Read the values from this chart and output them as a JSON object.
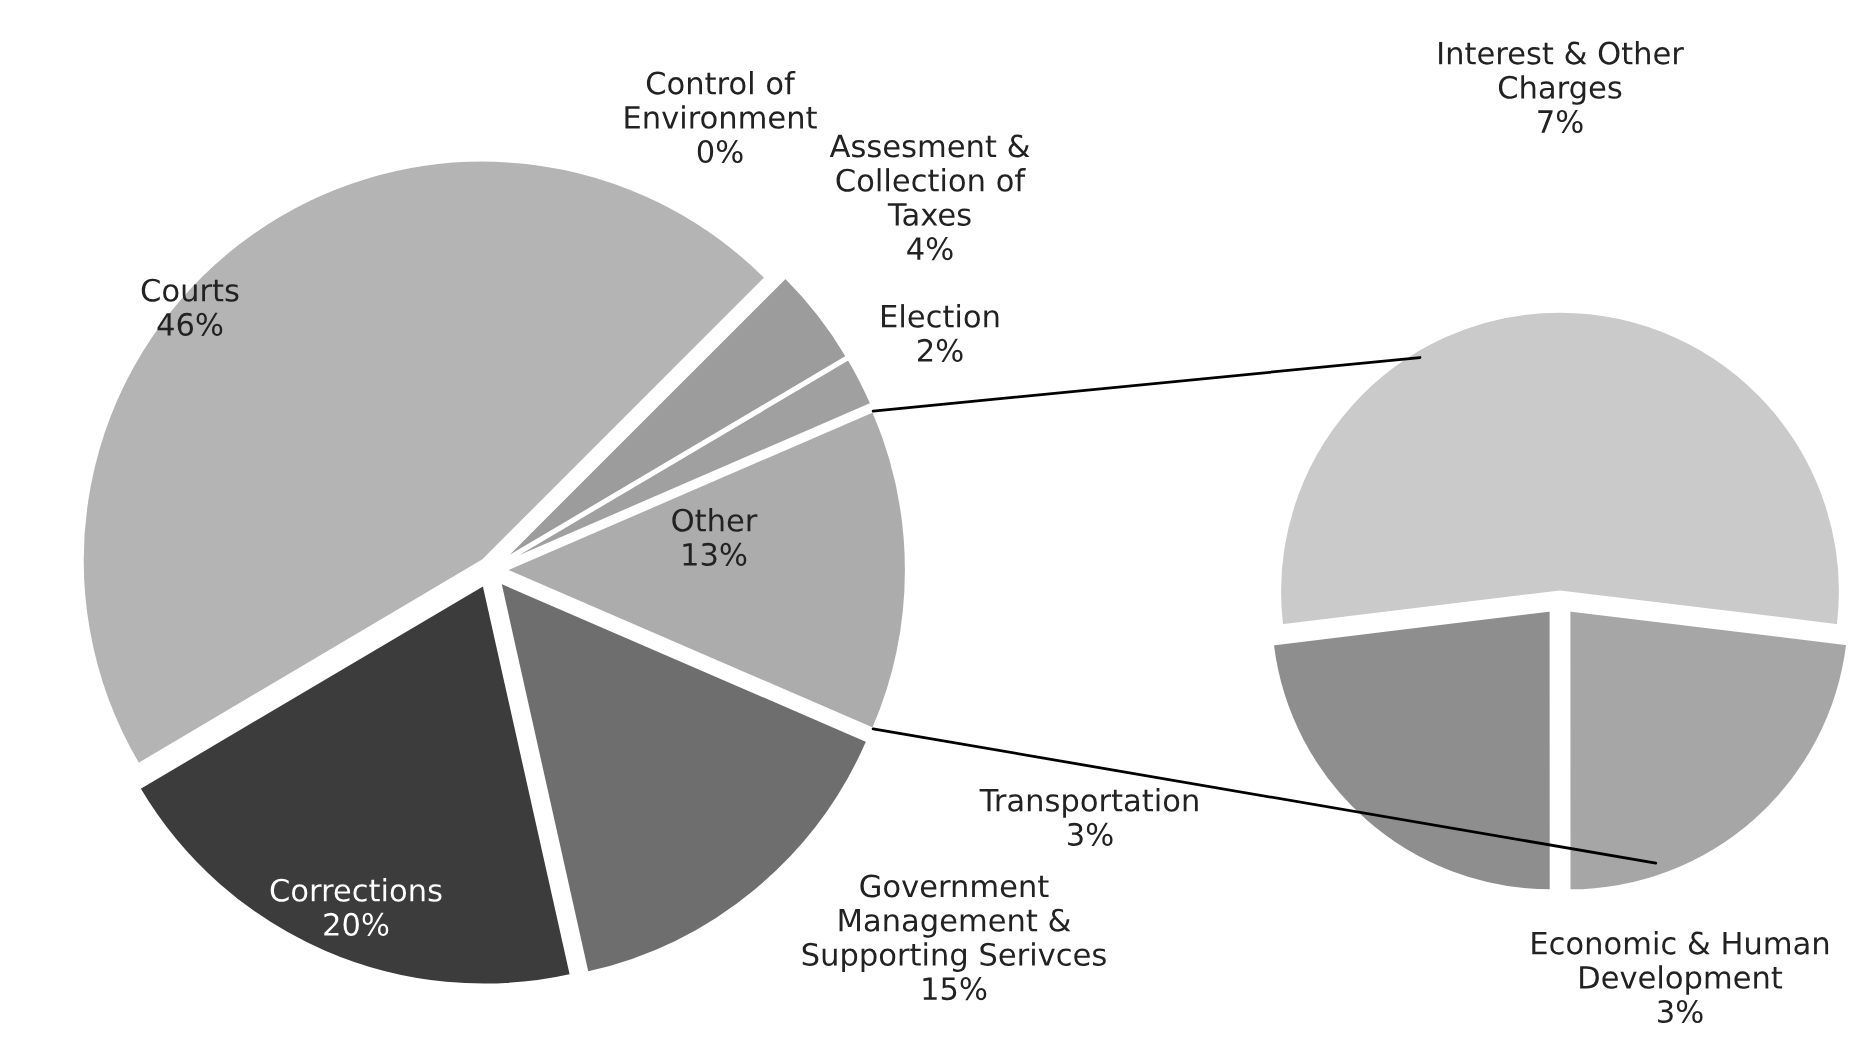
{
  "chart_data": [
    {
      "type": "pie",
      "categories": [
        "Courts",
        "Control of\nEnvironment",
        "Assesment &\nCollection of\nTaxes",
        "Election",
        "Other",
        "Government\nManagement &\nSupporting Serivces",
        "Corrections"
      ],
      "values": [
        46,
        0,
        4,
        2,
        13,
        15,
        20
      ],
      "value_labels": [
        "46%",
        "0%",
        "4%",
        "2%",
        "13%",
        "15%",
        "20%"
      ],
      "colors": [
        "#b4b4b4",
        "#8c8c8c",
        "#9c9c9c",
        "#a0a0a0",
        "#acacac",
        "#6e6e6e",
        "#3c3c3c"
      ]
    },
    {
      "type": "pie",
      "categories": [
        "Interest & Other\nCharges",
        "Transportation",
        "Economic & Human\nDevelopment"
      ],
      "values": [
        7,
        3,
        3
      ],
      "value_labels": [
        "7%",
        "3%",
        "3%"
      ],
      "colors": [
        "#cacaca",
        "#8e8e8e",
        "#a6a6a6"
      ]
    }
  ]
}
